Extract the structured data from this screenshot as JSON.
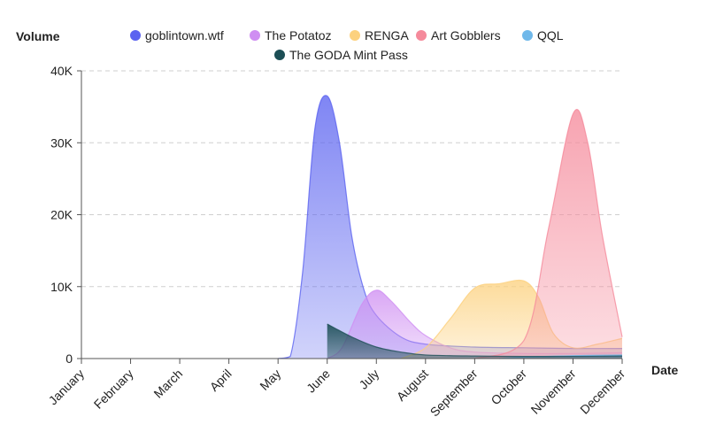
{
  "chart_data": {
    "type": "area",
    "ylabel": "Volume",
    "xlabel": "Date",
    "ylim": [
      0,
      40000
    ],
    "yticks": [
      0,
      10000,
      20000,
      30000,
      40000
    ],
    "ytick_labels": [
      "0",
      "10K",
      "20K",
      "30K",
      "40K"
    ],
    "grid": "horizontal-dashed",
    "legend_position": "top-center",
    "categories": [
      "January",
      "February",
      "March",
      "April",
      "May",
      "June",
      "July",
      "August",
      "September",
      "October",
      "November",
      "December"
    ],
    "series": [
      {
        "name": "goblintown.wtf",
        "color": "#5b63f0",
        "points": [
          [
            4.0,
            0
          ],
          [
            4.25,
            300
          ],
          [
            4.5,
            12000
          ],
          [
            4.75,
            32000
          ],
          [
            5.0,
            36500
          ],
          [
            5.25,
            30000
          ],
          [
            5.5,
            17000
          ],
          [
            5.75,
            9500
          ],
          [
            6.0,
            6000
          ],
          [
            6.5,
            3000
          ],
          [
            7.0,
            2000
          ],
          [
            8.0,
            1600
          ],
          [
            9.0,
            1500
          ],
          [
            10.0,
            1400
          ],
          [
            11.0,
            1400
          ]
        ]
      },
      {
        "name": "The Potatoz",
        "color": "#cf8ef2",
        "points": [
          [
            5.0,
            0
          ],
          [
            5.3,
            1500
          ],
          [
            5.7,
            7500
          ],
          [
            6.0,
            9500
          ],
          [
            6.3,
            8000
          ],
          [
            6.7,
            5000
          ],
          [
            7.0,
            3200
          ],
          [
            7.5,
            1500
          ],
          [
            8.0,
            900
          ],
          [
            9.0,
            700
          ],
          [
            10.0,
            700
          ],
          [
            11.0,
            800
          ]
        ]
      },
      {
        "name": "RENGA",
        "color": "#fcd17e",
        "points": [
          [
            6.5,
            0
          ],
          [
            7.0,
            1500
          ],
          [
            7.5,
            5500
          ],
          [
            8.0,
            9800
          ],
          [
            8.5,
            10400
          ],
          [
            9.0,
            10800
          ],
          [
            9.3,
            8500
          ],
          [
            9.6,
            3500
          ],
          [
            10.0,
            1500
          ],
          [
            10.5,
            2000
          ],
          [
            11.0,
            2800
          ]
        ]
      },
      {
        "name": "Art Gobblers",
        "color": "#f58a9b",
        "points": [
          [
            8.0,
            0
          ],
          [
            9.0,
            2500
          ],
          [
            9.5,
            18000
          ],
          [
            10.0,
            34000
          ],
          [
            10.3,
            30000
          ],
          [
            10.6,
            17000
          ],
          [
            11.0,
            3000
          ]
        ]
      },
      {
        "name": "QQL",
        "color": "#6fb8ea",
        "points": [
          [
            8.5,
            0
          ],
          [
            9.0,
            200
          ],
          [
            10.0,
            400
          ],
          [
            11.0,
            500
          ]
        ]
      },
      {
        "name": "The GODA Mint Pass",
        "color": "#1c4e55",
        "points": [
          [
            5.0,
            4800
          ],
          [
            5.5,
            3000
          ],
          [
            6.0,
            1600
          ],
          [
            6.5,
            900
          ],
          [
            7.0,
            500
          ],
          [
            8.0,
            350
          ],
          [
            9.0,
            300
          ],
          [
            10.0,
            300
          ],
          [
            11.0,
            350
          ]
        ]
      }
    ]
  }
}
